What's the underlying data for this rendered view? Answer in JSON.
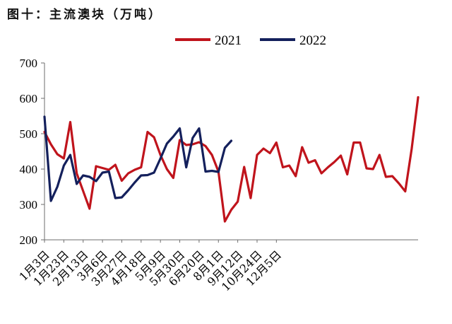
{
  "chart_data": {
    "type": "line",
    "title": "图十：主流澳块（万吨）",
    "xlabel": "",
    "ylabel": "",
    "ylim": [
      200,
      700
    ],
    "yticks": [
      200,
      300,
      400,
      500,
      600,
      700
    ],
    "grid": false,
    "legend_position": "top",
    "x_tick_labels": [
      "1月3日",
      "1月23日",
      "2月13日",
      "3月6日",
      "3月27日",
      "4月18日",
      "5月9日",
      "5月30日",
      "6月20日",
      "8月1日",
      "9月12日",
      "10月24日",
      "12月5日"
    ],
    "series": [
      {
        "name": "2021",
        "color": "#c0141c",
        "values": [
          505,
          470,
          442,
          430,
          533,
          388,
          338,
          288,
          408,
          403,
          398,
          412,
          367,
          388,
          398,
          405,
          505,
          490,
          440,
          400,
          375,
          482,
          468,
          470,
          476,
          465,
          440,
          393,
          252,
          285,
          308,
          406,
          318,
          440,
          458,
          445,
          475,
          405,
          410,
          380,
          462,
          418,
          425,
          388,
          405,
          420,
          438,
          385,
          475,
          475,
          402,
          400,
          440,
          378,
          380,
          360,
          337,
          457,
          603
        ]
      },
      {
        "name": "2022",
        "color": "#14205c",
        "values": [
          548,
          310,
          350,
          410,
          440,
          358,
          382,
          378,
          366,
          390,
          393,
          318,
          320,
          340,
          362,
          382,
          383,
          390,
          430,
          472,
          492,
          515,
          405,
          488,
          515,
          393,
          395,
          392,
          460,
          480
        ]
      }
    ]
  }
}
